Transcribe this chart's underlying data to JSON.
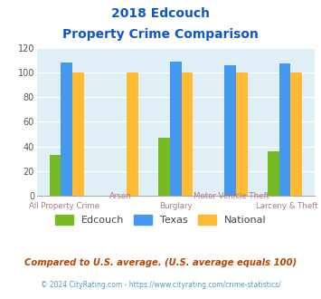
{
  "title_line1": "2018 Edcouch",
  "title_line2": "Property Crime Comparison",
  "categories": [
    "All Property Crime",
    "Arson",
    "Burglary",
    "Motor Vehicle Theft",
    "Larceny & Theft"
  ],
  "edcouch": [
    33,
    0,
    47,
    0,
    36
  ],
  "texas": [
    108,
    0,
    109,
    106,
    107
  ],
  "national": [
    100,
    100,
    100,
    100,
    100
  ],
  "edcouch_color": "#77bb22",
  "texas_color": "#4499ee",
  "national_color": "#ffbb33",
  "bg_color": "#e0eef5",
  "title_color": "#1155cc",
  "xlabel_color": "#aa7788",
  "ylim": [
    0,
    120
  ],
  "yticks": [
    0,
    20,
    40,
    60,
    80,
    100,
    120
  ],
  "footnote": "Compared to U.S. average. (U.S. average equals 100)",
  "footnote2": "© 2024 CityRating.com - https://www.cityrating.com/crime-statistics/",
  "footnote_color": "#bb4400",
  "footnote2_color": "#5599bb",
  "legend_labels": [
    "Edcouch",
    "Texas",
    "National"
  ],
  "bar_width": 0.21
}
